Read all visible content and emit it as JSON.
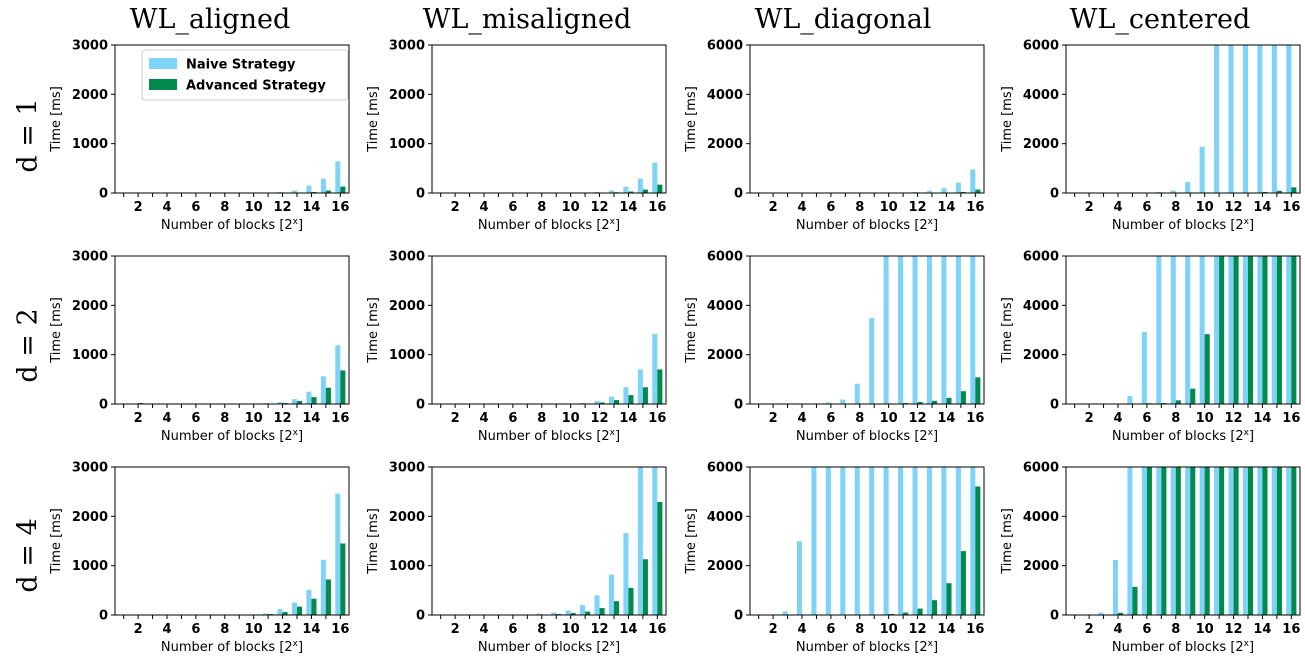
{
  "column_titles": [
    "WL_aligned",
    "WL_misaligned",
    "WL_diagonal",
    "WL_centered"
  ],
  "row_labels": [
    "d = 1",
    "d = 2",
    "d = 4"
  ],
  "colors": {
    "naive": "#7fd3f7",
    "advanced": "#008a4e"
  },
  "chart_data": [
    {
      "type": "bar",
      "panel": "WL_aligned d = 1",
      "legend_position": "top-center",
      "categories": [
        1,
        2,
        3,
        4,
        5,
        6,
        7,
        8,
        9,
        10,
        11,
        12,
        13,
        14,
        15,
        16
      ],
      "x_ticks": [
        2,
        4,
        6,
        8,
        10,
        12,
        14,
        16
      ],
      "xlabel": "Number of blocks [2^x]",
      "ylabel": "Time [ms]",
      "ylim": [
        0,
        3000
      ],
      "y_ticks": [
        0,
        1000,
        2000,
        3000
      ],
      "series": [
        {
          "name": "Naive Strategy",
          "values": [
            0,
            0,
            0,
            0,
            0,
            0,
            0,
            0,
            0,
            0,
            5,
            20,
            50,
            150,
            290,
            640
          ]
        },
        {
          "name": "Advanced Strategy",
          "values": [
            0,
            0,
            0,
            0,
            0,
            0,
            0,
            0,
            0,
            0,
            2,
            5,
            10,
            20,
            50,
            130
          ]
        }
      ]
    },
    {
      "type": "bar",
      "panel": "WL_misaligned d = 1",
      "categories": [
        1,
        2,
        3,
        4,
        5,
        6,
        7,
        8,
        9,
        10,
        11,
        12,
        13,
        14,
        15,
        16
      ],
      "x_ticks": [
        2,
        4,
        6,
        8,
        10,
        12,
        14,
        16
      ],
      "xlabel": "Number of blocks [2^x]",
      "ylabel": "Time [ms]",
      "ylim": [
        0,
        3000
      ],
      "y_ticks": [
        0,
        1000,
        2000,
        3000
      ],
      "series": [
        {
          "name": "Naive Strategy",
          "values": [
            0,
            0,
            0,
            0,
            0,
            0,
            0,
            0,
            0,
            0,
            5,
            20,
            50,
            130,
            290,
            620
          ]
        },
        {
          "name": "Advanced Strategy",
          "values": [
            0,
            0,
            0,
            0,
            0,
            0,
            0,
            0,
            0,
            0,
            2,
            5,
            15,
            30,
            70,
            170
          ]
        }
      ]
    },
    {
      "type": "bar",
      "panel": "WL_diagonal d = 1",
      "categories": [
        1,
        2,
        3,
        4,
        5,
        6,
        7,
        8,
        9,
        10,
        11,
        12,
        13,
        14,
        15,
        16
      ],
      "x_ticks": [
        2,
        4,
        6,
        8,
        10,
        12,
        14,
        16
      ],
      "xlabel": "Number of blocks [2^x]",
      "ylabel": "Time [ms]",
      "ylim": [
        0,
        6000
      ],
      "y_ticks": [
        0,
        2000,
        4000,
        6000
      ],
      "series": [
        {
          "name": "Naive Strategy",
          "values": [
            0,
            0,
            0,
            0,
            0,
            0,
            0,
            0,
            0,
            0,
            10,
            40,
            90,
            200,
            420,
            950
          ]
        },
        {
          "name": "Advanced Strategy",
          "values": [
            0,
            0,
            0,
            0,
            0,
            0,
            0,
            0,
            0,
            0,
            2,
            5,
            10,
            20,
            40,
            140
          ]
        }
      ]
    },
    {
      "type": "bar",
      "panel": "WL_centered d = 1",
      "categories": [
        1,
        2,
        3,
        4,
        5,
        6,
        7,
        8,
        9,
        10,
        11,
        12,
        13,
        14,
        15,
        16
      ],
      "x_ticks": [
        2,
        4,
        6,
        8,
        10,
        12,
        14,
        16
      ],
      "xlabel": "Number of blocks [2^x]",
      "ylabel": "Time [ms]",
      "ylim": [
        0,
        6000
      ],
      "y_ticks": [
        0,
        2000,
        4000,
        6000
      ],
      "series": [
        {
          "name": "Naive Strategy",
          "values": [
            0,
            0,
            0,
            0,
            0,
            10,
            40,
            100,
            450,
            1880,
            6000,
            6000,
            6000,
            6000,
            6000,
            6000
          ]
        },
        {
          "name": "Advanced Strategy",
          "values": [
            0,
            0,
            0,
            0,
            0,
            0,
            0,
            0,
            0,
            0,
            5,
            10,
            20,
            40,
            90,
            230
          ]
        }
      ]
    },
    {
      "type": "bar",
      "panel": "WL_aligned d = 2",
      "categories": [
        1,
        2,
        3,
        4,
        5,
        6,
        7,
        8,
        9,
        10,
        11,
        12,
        13,
        14,
        15,
        16
      ],
      "x_ticks": [
        2,
        4,
        6,
        8,
        10,
        12,
        14,
        16
      ],
      "xlabel": "Number of blocks [2^x]",
      "ylabel": "Time [ms]",
      "ylim": [
        0,
        3000
      ],
      "y_ticks": [
        0,
        1000,
        2000,
        3000
      ],
      "series": [
        {
          "name": "Naive Strategy",
          "values": [
            0,
            0,
            0,
            0,
            0,
            0,
            0,
            0,
            0,
            5,
            20,
            40,
            100,
            250,
            560,
            1190
          ]
        },
        {
          "name": "Advanced Strategy",
          "values": [
            0,
            20,
            0,
            0,
            0,
            0,
            0,
            0,
            0,
            2,
            10,
            20,
            60,
            140,
            330,
            680
          ]
        }
      ]
    },
    {
      "type": "bar",
      "panel": "WL_misaligned d = 2",
      "categories": [
        1,
        2,
        3,
        4,
        5,
        6,
        7,
        8,
        9,
        10,
        11,
        12,
        13,
        14,
        15,
        16
      ],
      "x_ticks": [
        2,
        4,
        6,
        8,
        10,
        12,
        14,
        16
      ],
      "xlabel": "Number of blocks [2^x]",
      "ylabel": "Time [ms]",
      "ylim": [
        0,
        3000
      ],
      "y_ticks": [
        0,
        1000,
        2000,
        3000
      ],
      "series": [
        {
          "name": "Naive Strategy",
          "values": [
            0,
            0,
            0,
            0,
            0,
            0,
            0,
            0,
            5,
            10,
            20,
            60,
            150,
            340,
            700,
            1420
          ]
        },
        {
          "name": "Advanced Strategy",
          "values": [
            0,
            0,
            0,
            0,
            0,
            0,
            0,
            0,
            2,
            5,
            10,
            30,
            80,
            180,
            340,
            700
          ]
        }
      ]
    },
    {
      "type": "bar",
      "panel": "WL_diagonal d = 2",
      "categories": [
        1,
        2,
        3,
        4,
        5,
        6,
        7,
        8,
        9,
        10,
        11,
        12,
        13,
        14,
        15,
        16
      ],
      "x_ticks": [
        2,
        4,
        6,
        8,
        10,
        12,
        14,
        16
      ],
      "xlabel": "Number of blocks [2^x]",
      "ylabel": "Time [ms]",
      "ylim": [
        0,
        6000
      ],
      "y_ticks": [
        0,
        2000,
        4000,
        6000
      ],
      "series": [
        {
          "name": "Naive Strategy",
          "values": [
            0,
            0,
            0,
            0,
            20,
            60,
            180,
            820,
            3480,
            6000,
            6000,
            6000,
            6000,
            6000,
            6000,
            6000
          ]
        },
        {
          "name": "Advanced Strategy",
          "values": [
            0,
            0,
            0,
            0,
            0,
            0,
            0,
            5,
            10,
            20,
            40,
            80,
            130,
            250,
            520,
            1080
          ]
        }
      ]
    },
    {
      "type": "bar",
      "panel": "WL_centered d = 2",
      "categories": [
        1,
        2,
        3,
        4,
        5,
        6,
        7,
        8,
        9,
        10,
        11,
        12,
        13,
        14,
        15,
        16
      ],
      "x_ticks": [
        2,
        4,
        6,
        8,
        10,
        12,
        14,
        16
      ],
      "xlabel": "Number of blocks [2^x]",
      "ylabel": "Time [ms]",
      "ylim": [
        0,
        6000
      ],
      "y_ticks": [
        0,
        2000,
        4000,
        6000
      ],
      "series": [
        {
          "name": "Naive Strategy",
          "values": [
            0,
            0,
            0,
            20,
            330,
            2920,
            6000,
            6000,
            6000,
            6000,
            6000,
            6000,
            6000,
            6000,
            6000,
            6000
          ]
        },
        {
          "name": "Advanced Strategy",
          "values": [
            0,
            0,
            0,
            0,
            5,
            30,
            40,
            150,
            620,
            2830,
            6000,
            6000,
            6000,
            6000,
            6000,
            6000
          ]
        }
      ]
    },
    {
      "type": "bar",
      "panel": "WL_aligned d = 4",
      "categories": [
        1,
        2,
        3,
        4,
        5,
        6,
        7,
        8,
        9,
        10,
        11,
        12,
        13,
        14,
        15,
        16
      ],
      "x_ticks": [
        2,
        4,
        6,
        8,
        10,
        12,
        14,
        16
      ],
      "xlabel": "Number of blocks [2^x]",
      "ylabel": "Time [ms]",
      "ylim": [
        0,
        3000
      ],
      "y_ticks": [
        0,
        1000,
        2000,
        3000
      ],
      "series": [
        {
          "name": "Naive Strategy",
          "values": [
            0,
            0,
            0,
            0,
            0,
            0,
            0,
            0,
            5,
            10,
            30,
            120,
            250,
            510,
            1120,
            2460
          ]
        },
        {
          "name": "Advanced Strategy",
          "values": [
            0,
            0,
            0,
            0,
            0,
            0,
            0,
            0,
            2,
            5,
            20,
            60,
            170,
            330,
            720,
            1450
          ]
        }
      ]
    },
    {
      "type": "bar",
      "panel": "WL_misaligned d = 4",
      "categories": [
        1,
        2,
        3,
        4,
        5,
        6,
        7,
        8,
        9,
        10,
        11,
        12,
        13,
        14,
        15,
        16
      ],
      "x_ticks": [
        2,
        4,
        6,
        8,
        10,
        12,
        14,
        16
      ],
      "xlabel": "Number of blocks [2^x]",
      "ylabel": "Time [ms]",
      "ylim": [
        0,
        3000
      ],
      "y_ticks": [
        0,
        1000,
        2000,
        3000
      ],
      "series": [
        {
          "name": "Naive Strategy",
          "values": [
            0,
            0,
            0,
            0,
            0,
            0,
            10,
            30,
            50,
            90,
            200,
            400,
            820,
            1660,
            3000,
            3000
          ]
        },
        {
          "name": "Advanced Strategy",
          "values": [
            0,
            0,
            0,
            0,
            0,
            0,
            5,
            10,
            20,
            40,
            70,
            140,
            280,
            550,
            1130,
            2290
          ]
        }
      ]
    },
    {
      "type": "bar",
      "panel": "WL_diagonal d = 4",
      "categories": [
        1,
        2,
        3,
        4,
        5,
        6,
        7,
        8,
        9,
        10,
        11,
        12,
        13,
        14,
        15,
        16
      ],
      "x_ticks": [
        2,
        4,
        6,
        8,
        10,
        12,
        14,
        16
      ],
      "xlabel": "Number of blocks [2^x]",
      "ylabel": "Time [ms]",
      "ylim": [
        0,
        6000
      ],
      "y_ticks": [
        0,
        2000,
        4000,
        6000
      ],
      "series": [
        {
          "name": "Naive Strategy",
          "values": [
            0,
            0,
            150,
            2990,
            6000,
            6000,
            6000,
            6000,
            6000,
            6000,
            6000,
            6000,
            6000,
            6000,
            6000,
            6000
          ]
        },
        {
          "name": "Advanced Strategy",
          "values": [
            0,
            0,
            0,
            0,
            0,
            0,
            0,
            0,
            0,
            40,
            100,
            260,
            600,
            1290,
            2590,
            5210
          ]
        }
      ]
    },
    {
      "type": "bar",
      "panel": "WL_centered d = 4",
      "categories": [
        1,
        2,
        3,
        4,
        5,
        6,
        7,
        8,
        9,
        10,
        11,
        12,
        13,
        14,
        15,
        16
      ],
      "x_ticks": [
        2,
        4,
        6,
        8,
        10,
        12,
        14,
        16
      ],
      "xlabel": "Number of blocks [2^x]",
      "ylabel": "Time [ms]",
      "ylim": [
        0,
        6000
      ],
      "y_ticks": [
        0,
        2000,
        4000,
        6000
      ],
      "series": [
        {
          "name": "Naive Strategy",
          "values": [
            0,
            0,
            100,
            2230,
            6000,
            6000,
            6000,
            6000,
            6000,
            6000,
            6000,
            6000,
            6000,
            6000,
            6000,
            6000
          ]
        },
        {
          "name": "Advanced Strategy",
          "values": [
            0,
            0,
            0,
            90,
            1140,
            6000,
            6000,
            6000,
            6000,
            6000,
            6000,
            6000,
            6000,
            6000,
            6000,
            6000
          ]
        }
      ]
    }
  ]
}
